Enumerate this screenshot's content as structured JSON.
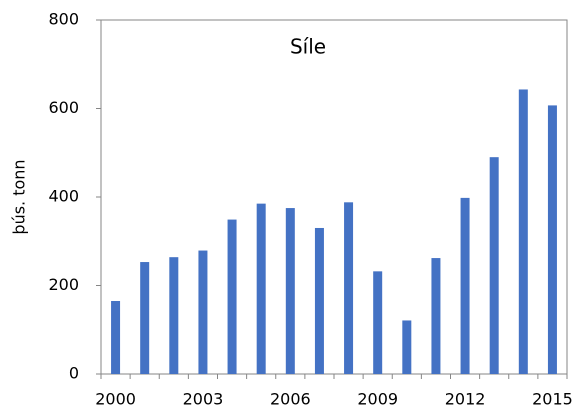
{
  "chart_data": {
    "type": "bar",
    "title": "Síle",
    "y_label": "þús. tonn",
    "categories": [
      "2000",
      null,
      null,
      "2003",
      null,
      null,
      "2006",
      null,
      null,
      "2009",
      null,
      null,
      "2012",
      null,
      null,
      "2015"
    ],
    "values": [
      165,
      253,
      264,
      279,
      349,
      385,
      375,
      330,
      388,
      232,
      121,
      262,
      398,
      490,
      643,
      607
    ],
    "color": "#4472c4",
    "ylim": [
      0,
      800
    ],
    "yticks": [
      0,
      200,
      400,
      600,
      800
    ],
    "grid": false
  }
}
